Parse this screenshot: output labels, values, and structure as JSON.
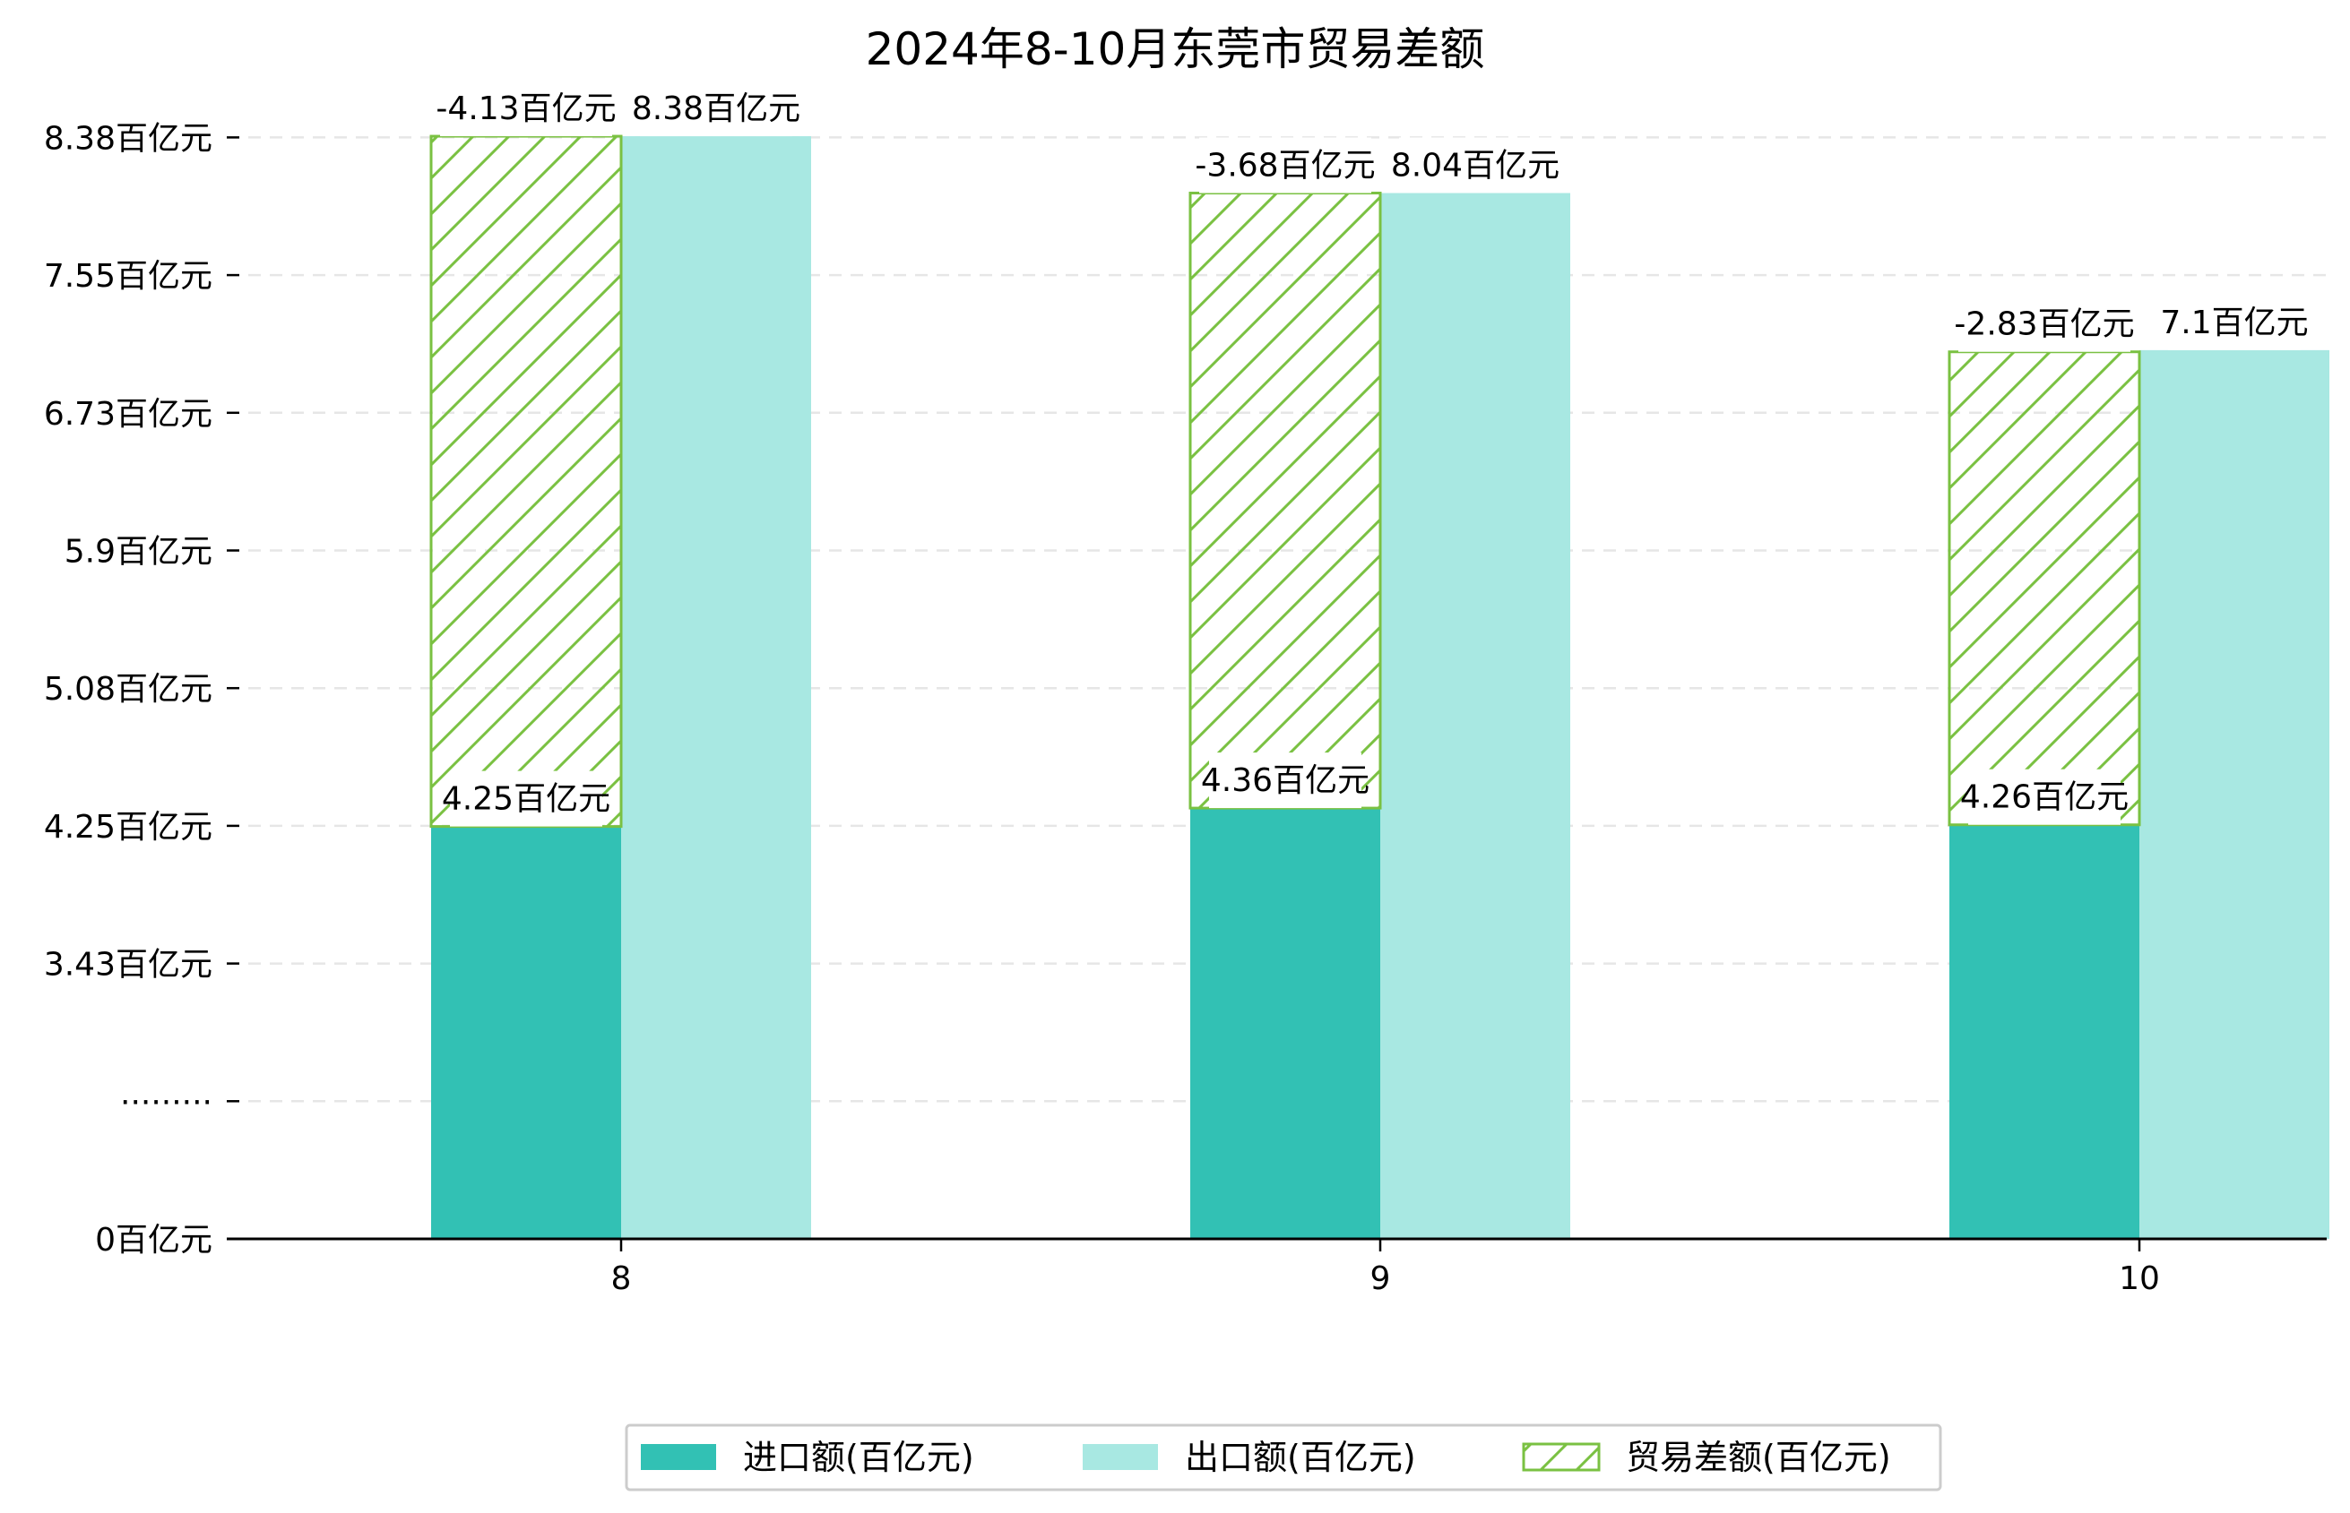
{
  "chart_data": {
    "type": "bar",
    "title": "2024年8-10月东莞市贸易差额",
    "categories": [
      "8",
      "9",
      "10"
    ],
    "series": [
      {
        "name": "进口额(百亿元)",
        "values": [
          4.25,
          4.36,
          4.26
        ],
        "labels": [
          "4.25百亿元",
          "4.36百亿元",
          "4.26百亿元"
        ],
        "color": "#32c1b4"
      },
      {
        "name": "出口额(百亿元)",
        "values": [
          8.38,
          8.04,
          7.1
        ],
        "labels": [
          "8.38百亿元",
          "8.04百亿元",
          "7.1百亿元"
        ],
        "color": "#a8e8e2"
      },
      {
        "name": "贸易差额(百亿元)",
        "values": [
          -4.13,
          -3.68,
          -2.83
        ],
        "labels": [
          "-4.13百亿元",
          "-3.68百亿元",
          "-2.83百亿元"
        ],
        "color": "#7ac142",
        "pattern": "hatch"
      }
    ],
    "y_ticks": [
      "0百亿元",
      "·········",
      "3.43百亿元",
      "4.25百亿元",
      "5.08百亿元",
      "5.9百亿元",
      "6.73百亿元",
      "7.55百亿元",
      "8.38百亿元"
    ],
    "y_scale": "broken",
    "grid": true,
    "legend_position": "bottom"
  }
}
